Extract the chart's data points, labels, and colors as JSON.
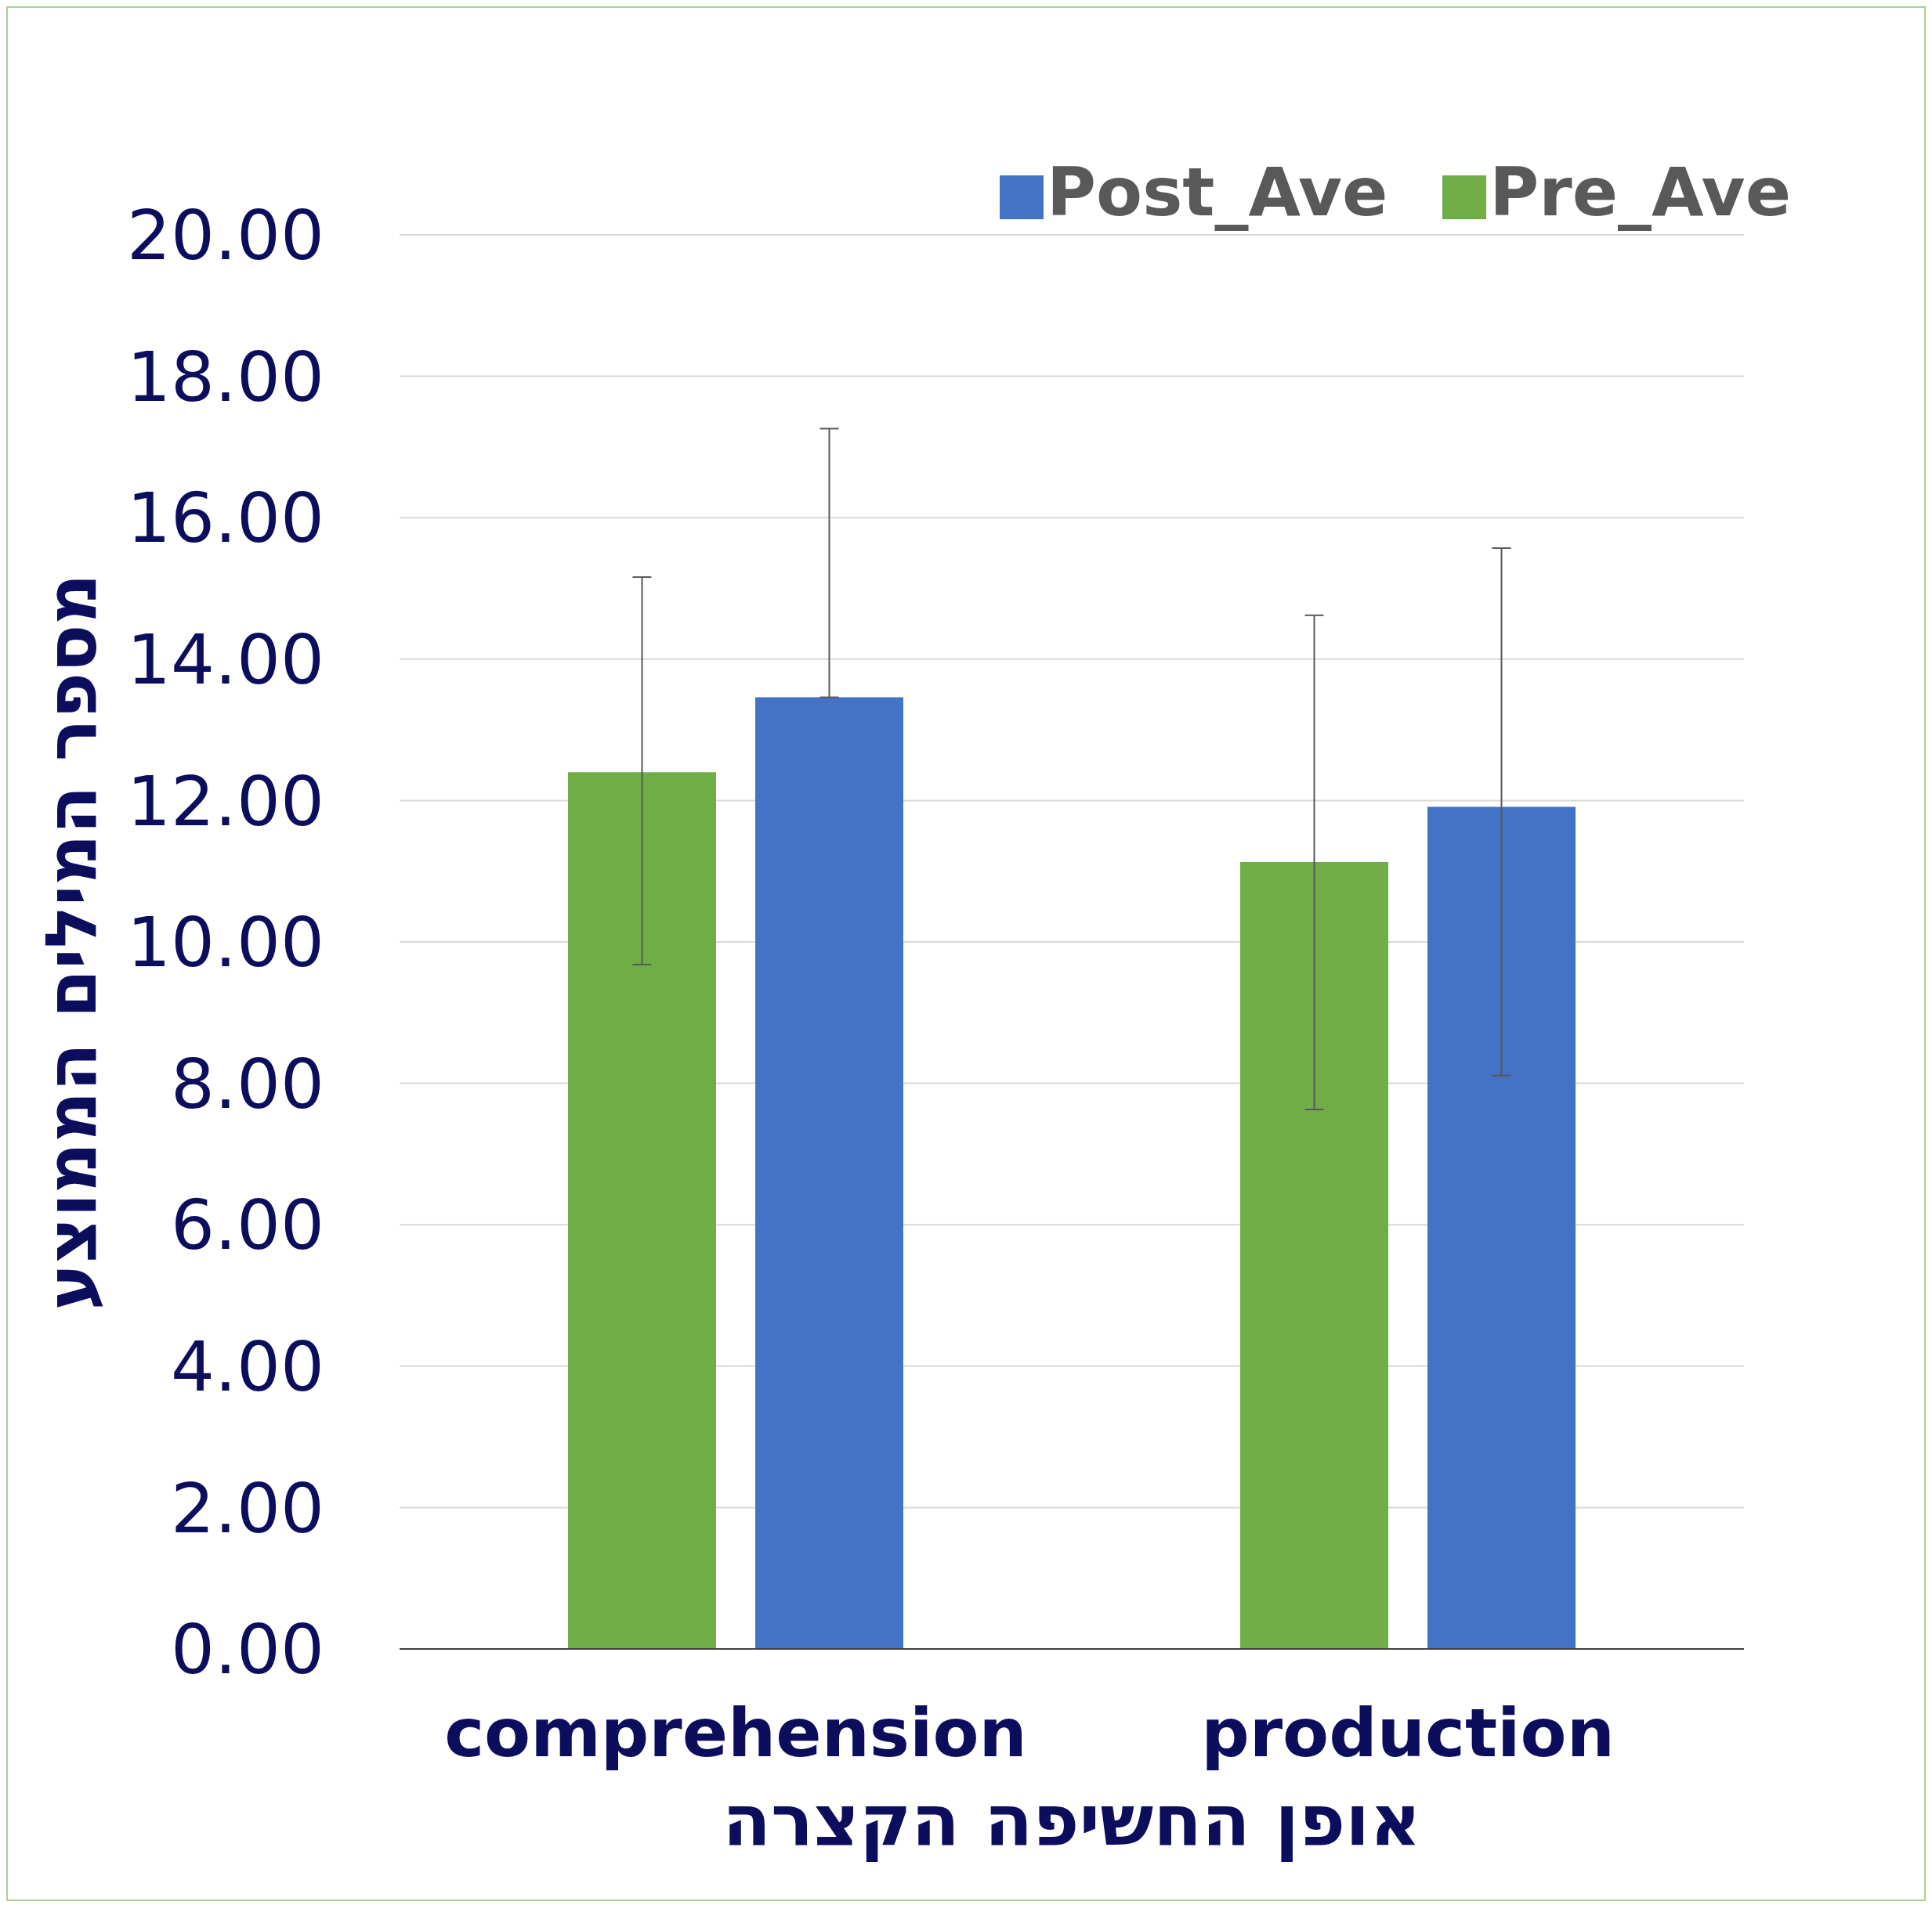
{
  "chart_data": {
    "type": "bar",
    "xlabel": "אופן החשיפה הקצרה",
    "ylabel": "מספר המילים הממוצע",
    "categories": [
      "comprehension",
      "production"
    ],
    "series": [
      {
        "name": "Pre_Ave",
        "color": "#70ad47",
        "values": [
          12.4,
          11.13
        ],
        "errors": [
          [
            9.68,
            15.16
          ],
          [
            7.63,
            14.62
          ]
        ]
      },
      {
        "name": "Post_Ave",
        "color": "#4472c4",
        "values": [
          13.46,
          11.91
        ],
        "errors": [
          [
            13.46,
            17.26
          ],
          [
            8.11,
            15.57
          ]
        ]
      }
    ],
    "ylim": [
      0,
      20
    ],
    "yticks": [
      {
        "value": 0,
        "label": "0.00"
      },
      {
        "value": 2,
        "label": "2.00"
      },
      {
        "value": 4,
        "label": "4.00"
      },
      {
        "value": 6,
        "label": "6.00"
      },
      {
        "value": 8,
        "label": "8.00"
      },
      {
        "value": 10,
        "label": "10.00"
      },
      {
        "value": 12,
        "label": "12.00"
      },
      {
        "value": 14,
        "label": "14.00"
      },
      {
        "value": 16,
        "label": "16.00"
      },
      {
        "value": 18,
        "label": "18.00"
      },
      {
        "value": 20,
        "label": "20.00"
      }
    ],
    "grid": "y",
    "legend": "top right"
  }
}
